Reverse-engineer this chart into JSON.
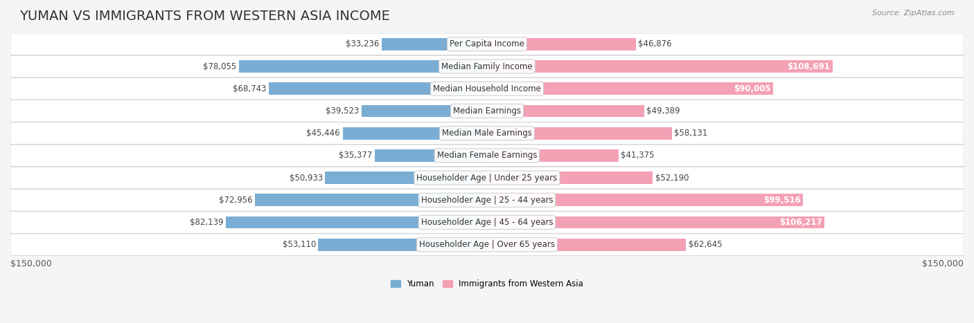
{
  "title": "YUMAN VS IMMIGRANTS FROM WESTERN ASIA INCOME",
  "source": "Source: ZipAtlas.com",
  "categories": [
    "Per Capita Income",
    "Median Family Income",
    "Median Household Income",
    "Median Earnings",
    "Median Male Earnings",
    "Median Female Earnings",
    "Householder Age | Under 25 years",
    "Householder Age | 25 - 44 years",
    "Householder Age | 45 - 64 years",
    "Householder Age | Over 65 years"
  ],
  "yuman_values": [
    33236,
    78055,
    68743,
    39523,
    45446,
    35377,
    50933,
    72956,
    82139,
    53110
  ],
  "immigrant_values": [
    46876,
    108691,
    90005,
    49389,
    58131,
    41375,
    52190,
    99516,
    106217,
    62645
  ],
  "yuman_color": "#7aadd4",
  "yuman_color_dark": "#5b8fbf",
  "immigrant_color": "#f4a0b5",
  "immigrant_color_dark": "#e8678a",
  "max_value": 150000,
  "xlabel_left": "$150,000",
  "xlabel_right": "$150,000",
  "legend_yuman": "Yuman",
  "legend_immigrant": "Immigrants from Western Asia",
  "background_color": "#f5f5f5",
  "row_bg_color": "#ffffff",
  "title_fontsize": 14,
  "label_fontsize": 8.5,
  "tick_fontsize": 9
}
